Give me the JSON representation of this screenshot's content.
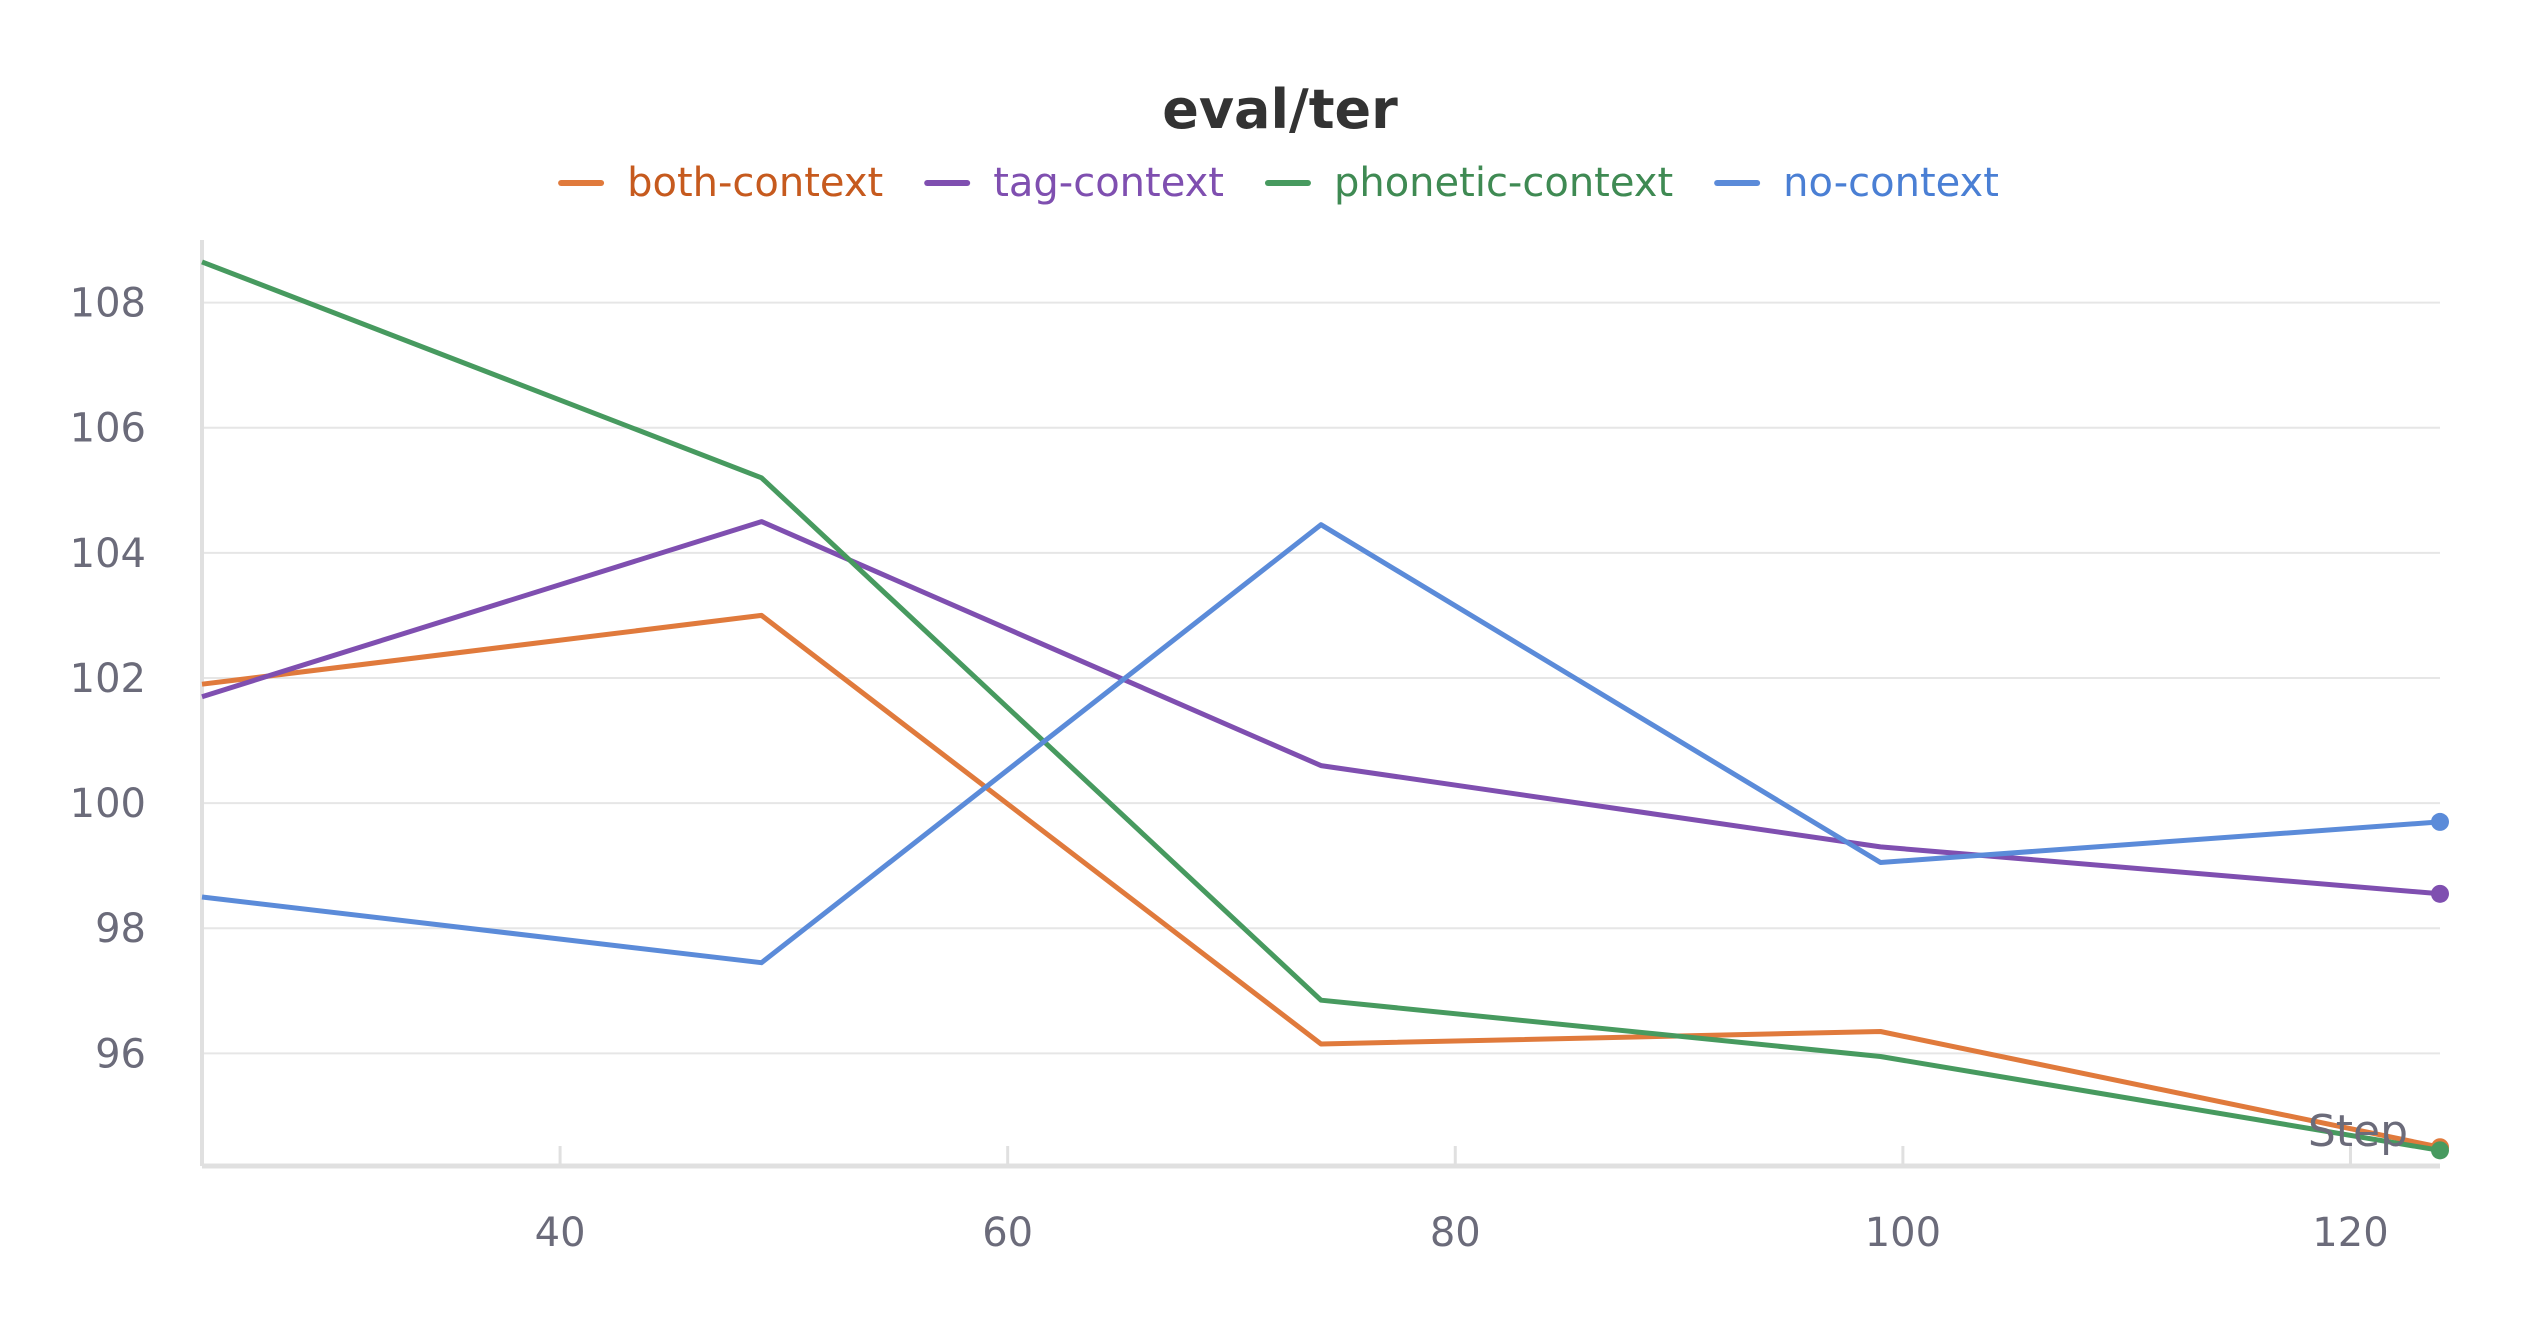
{
  "chart_data": {
    "type": "line",
    "title": "eval/ter",
    "xlabel": "Step",
    "ylabel": "",
    "xlim": [
      24,
      124
    ],
    "ylim": [
      94.2,
      109.0
    ],
    "xticks": [
      40,
      60,
      80,
      100,
      120
    ],
    "yticks": [
      96,
      98,
      100,
      102,
      104,
      106,
      108
    ],
    "grid": true,
    "legend_position": "top-center",
    "series": [
      {
        "name": "both-context",
        "color": "#e07a3c",
        "text_color": "#c65a1e",
        "x": [
          24,
          49,
          74,
          99,
          124
        ],
        "y": [
          101.9,
          103.0,
          96.15,
          96.35,
          94.5
        ]
      },
      {
        "name": "tag-context",
        "color": "#7f4fb0",
        "text_color": "#7f4fb0",
        "x": [
          24,
          49,
          74,
          99,
          124
        ],
        "y": [
          101.7,
          104.5,
          100.6,
          99.3,
          98.55
        ]
      },
      {
        "name": "phonetic-context",
        "color": "#479a5f",
        "text_color": "#3f8a53",
        "x": [
          24,
          49,
          74,
          99,
          124
        ],
        "y": [
          108.65,
          105.2,
          96.85,
          95.95,
          94.45
        ]
      },
      {
        "name": "no-context",
        "color": "#5b8bd9",
        "text_color": "#4a7fd4",
        "x": [
          24,
          49,
          74,
          99,
          124
        ],
        "y": [
          98.5,
          97.45,
          104.45,
          99.05,
          99.7
        ]
      }
    ]
  }
}
